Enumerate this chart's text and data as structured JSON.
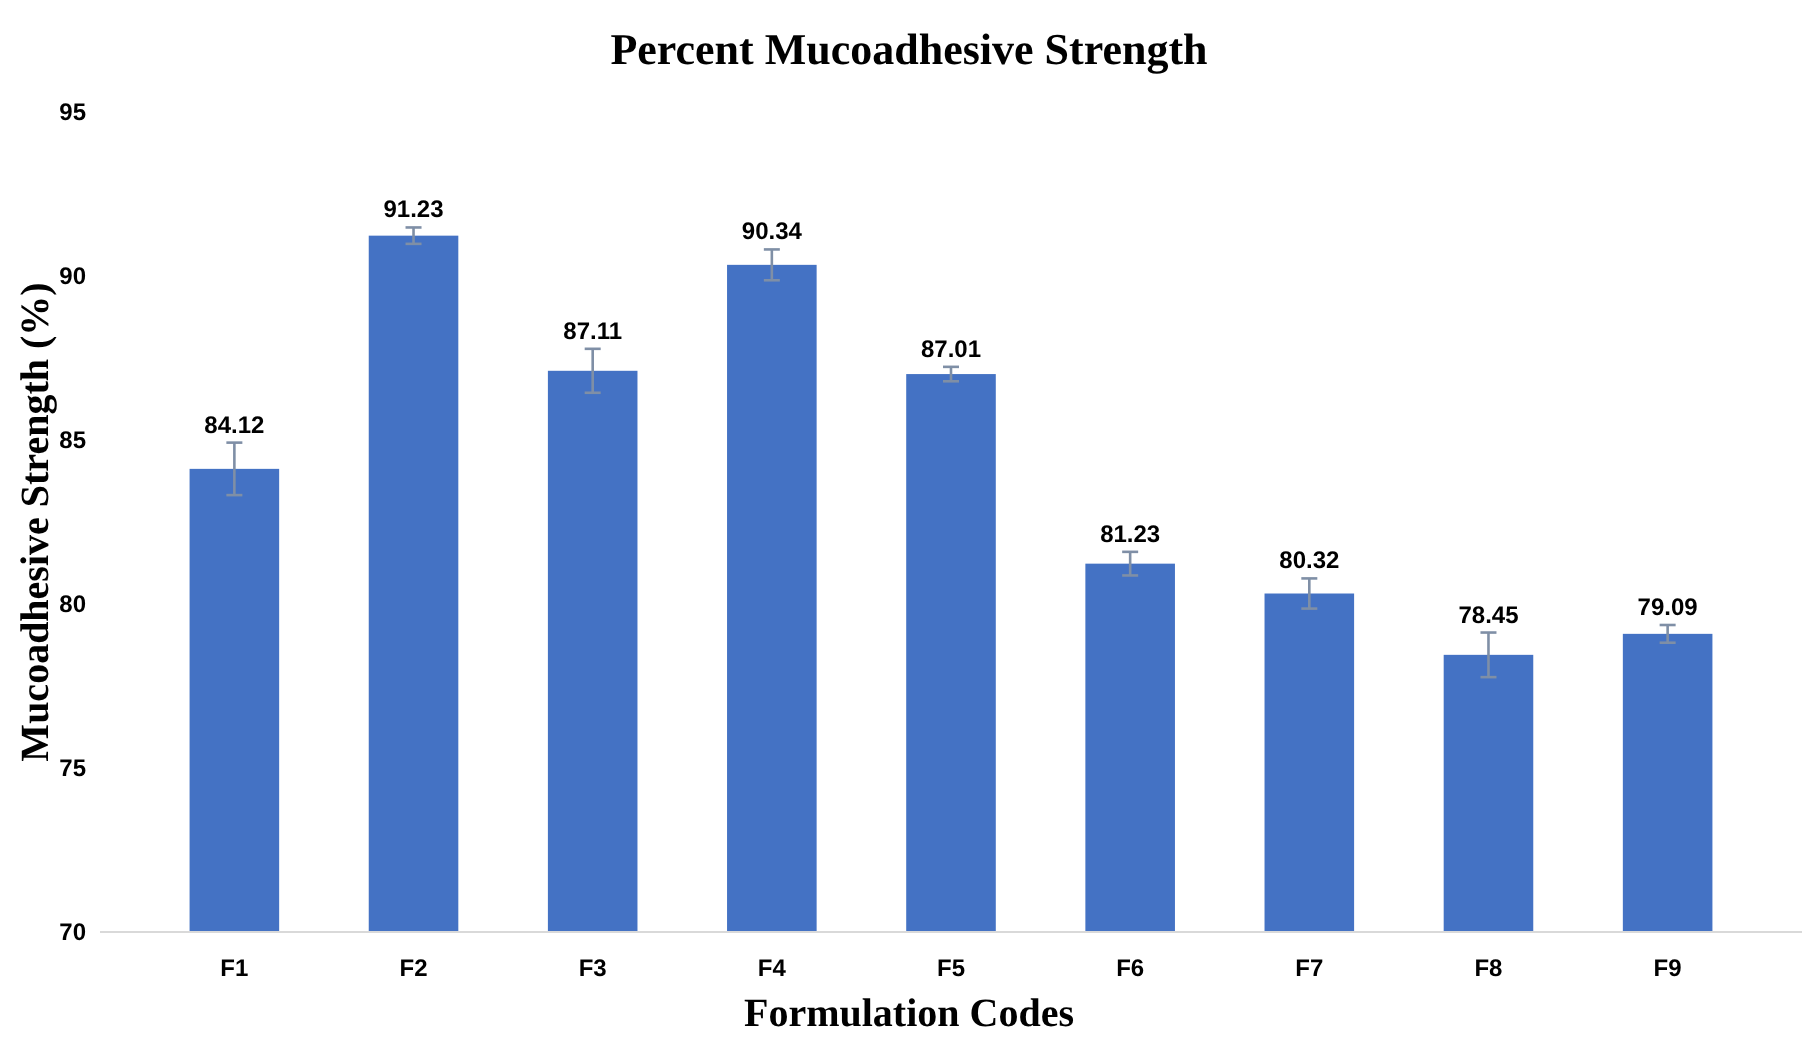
{
  "chart_data": {
    "type": "bar",
    "title": "Percent Mucoadhesive Strength",
    "xlabel": "Formulation Codes",
    "ylabel": "Mucoadhesive Strength (%)",
    "categories": [
      "F1",
      "F2",
      "F3",
      "F4",
      "F5",
      "F6",
      "F7",
      "F8",
      "F9"
    ],
    "values": [
      84.12,
      91.23,
      87.11,
      90.34,
      87.01,
      81.23,
      80.32,
      78.45,
      79.09
    ],
    "errors": [
      0.8,
      0.25,
      0.67,
      0.47,
      0.22,
      0.36,
      0.46,
      0.68,
      0.27
    ],
    "color": "#4472c4",
    "ylim": [
      70,
      95
    ],
    "yticks": [
      70,
      75,
      80,
      85,
      90,
      95
    ],
    "grid": false,
    "data_labels": true
  }
}
